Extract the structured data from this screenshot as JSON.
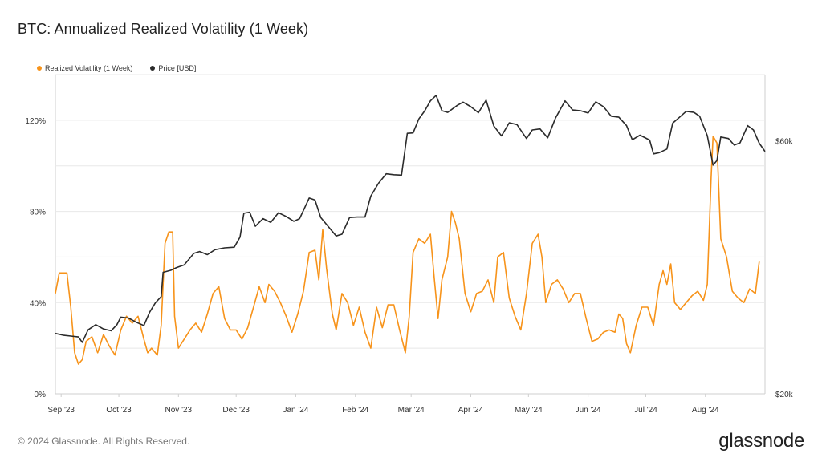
{
  "title": "BTC: Annualized Realized Volatility (1 Week)",
  "footer": "© 2024 Glassnode. All Rights Reserved.",
  "brand": "glassnode",
  "colors": {
    "volatility": "#f7931a",
    "price": "#2b2b2b",
    "grid": "#e8e8e8"
  },
  "chart_data": {
    "type": "line",
    "legend": [
      {
        "label": "Realized Volatility (1 Week)",
        "color": "#f7931a"
      },
      {
        "label": "Price [USD]",
        "color": "#2b2b2b"
      }
    ],
    "legend_position": "top-left",
    "x_ticks": [
      "Sep '23",
      "Oct '23",
      "Nov '23",
      "Dec '23",
      "Jan '24",
      "Feb '24",
      "Mar '24",
      "Apr '24",
      "May '24",
      "Jun '24",
      "Jul '24",
      "Aug '24"
    ],
    "x_range": [
      "2023-08-29",
      "2024-09-01"
    ],
    "y_left": {
      "ticks": [
        "0%",
        "40%",
        "80%",
        "120%"
      ],
      "tick_values": [
        0,
        40,
        80,
        120
      ],
      "range": [
        0,
        140
      ]
    },
    "y_right": {
      "ticks": [
        "$20k",
        "$60k"
      ],
      "tick_values": [
        20000,
        60000
      ],
      "scale": "log",
      "range": [
        20000,
        80000
      ]
    },
    "grid": true,
    "series": [
      {
        "name": "Realized Volatility (1 Week)",
        "axis": "left",
        "points": [
          [
            "2023-08-29",
            44
          ],
          [
            "2023-08-31",
            53
          ],
          [
            "2023-09-04",
            53
          ],
          [
            "2023-09-06",
            38
          ],
          [
            "2023-09-08",
            18
          ],
          [
            "2023-09-10",
            13
          ],
          [
            "2023-09-12",
            15
          ],
          [
            "2023-09-14",
            23
          ],
          [
            "2023-09-17",
            25
          ],
          [
            "2023-09-20",
            18
          ],
          [
            "2023-09-23",
            26
          ],
          [
            "2023-09-26",
            21
          ],
          [
            "2023-09-29",
            17
          ],
          [
            "2023-10-02",
            28
          ],
          [
            "2023-10-05",
            34
          ],
          [
            "2023-10-08",
            31
          ],
          [
            "2023-10-11",
            34
          ],
          [
            "2023-10-14",
            24
          ],
          [
            "2023-10-16",
            18
          ],
          [
            "2023-10-18",
            20
          ],
          [
            "2023-10-21",
            17
          ],
          [
            "2023-10-23",
            30
          ],
          [
            "2023-10-25",
            66
          ],
          [
            "2023-10-27",
            71
          ],
          [
            "2023-10-29",
            71
          ],
          [
            "2023-10-30",
            34
          ],
          [
            "2023-11-01",
            20
          ],
          [
            "2023-11-04",
            24
          ],
          [
            "2023-11-07",
            28
          ],
          [
            "2023-11-10",
            31
          ],
          [
            "2023-11-13",
            27
          ],
          [
            "2023-11-16",
            35
          ],
          [
            "2023-11-19",
            44
          ],
          [
            "2023-11-22",
            47
          ],
          [
            "2023-11-25",
            33
          ],
          [
            "2023-11-28",
            28
          ],
          [
            "2023-12-01",
            28
          ],
          [
            "2023-12-04",
            24
          ],
          [
            "2023-12-07",
            29
          ],
          [
            "2023-12-10",
            38
          ],
          [
            "2023-12-13",
            47
          ],
          [
            "2023-12-16",
            40
          ],
          [
            "2023-12-18",
            48
          ],
          [
            "2023-12-21",
            45
          ],
          [
            "2023-12-24",
            40
          ],
          [
            "2023-12-27",
            34
          ],
          [
            "2023-12-30",
            27
          ],
          [
            "2024-01-02",
            35
          ],
          [
            "2024-01-05",
            45
          ],
          [
            "2024-01-08",
            62
          ],
          [
            "2024-01-11",
            63
          ],
          [
            "2024-01-13",
            50
          ],
          [
            "2024-01-15",
            72
          ],
          [
            "2024-01-17",
            55
          ],
          [
            "2024-01-20",
            35
          ],
          [
            "2024-01-22",
            28
          ],
          [
            "2024-01-25",
            44
          ],
          [
            "2024-01-28",
            40
          ],
          [
            "2024-01-31",
            30
          ],
          [
            "2024-02-03",
            38
          ],
          [
            "2024-02-06",
            27
          ],
          [
            "2024-02-09",
            20
          ],
          [
            "2024-02-12",
            38
          ],
          [
            "2024-02-15",
            29
          ],
          [
            "2024-02-18",
            39
          ],
          [
            "2024-02-21",
            39
          ],
          [
            "2024-02-24",
            28
          ],
          [
            "2024-02-27",
            18
          ],
          [
            "2024-02-29",
            34
          ],
          [
            "2024-03-02",
            62
          ],
          [
            "2024-03-05",
            68
          ],
          [
            "2024-03-08",
            66
          ],
          [
            "2024-03-11",
            70
          ],
          [
            "2024-03-13",
            51
          ],
          [
            "2024-03-15",
            33
          ],
          [
            "2024-03-17",
            50
          ],
          [
            "2024-03-20",
            60
          ],
          [
            "2024-03-22",
            80
          ],
          [
            "2024-03-24",
            75
          ],
          [
            "2024-03-26",
            68
          ],
          [
            "2024-03-29",
            44
          ],
          [
            "2024-04-01",
            36
          ],
          [
            "2024-04-04",
            44
          ],
          [
            "2024-04-07",
            45
          ],
          [
            "2024-04-10",
            50
          ],
          [
            "2024-04-13",
            40
          ],
          [
            "2024-04-15",
            60
          ],
          [
            "2024-04-18",
            62
          ],
          [
            "2024-04-21",
            42
          ],
          [
            "2024-04-24",
            34
          ],
          [
            "2024-04-27",
            28
          ],
          [
            "2024-04-30",
            44
          ],
          [
            "2024-05-03",
            66
          ],
          [
            "2024-05-06",
            70
          ],
          [
            "2024-05-08",
            60
          ],
          [
            "2024-05-10",
            40
          ],
          [
            "2024-05-13",
            48
          ],
          [
            "2024-05-16",
            50
          ],
          [
            "2024-05-19",
            46
          ],
          [
            "2024-05-22",
            40
          ],
          [
            "2024-05-25",
            44
          ],
          [
            "2024-05-28",
            44
          ],
          [
            "2024-05-31",
            33
          ],
          [
            "2024-06-03",
            23
          ],
          [
            "2024-06-06",
            24
          ],
          [
            "2024-06-09",
            27
          ],
          [
            "2024-06-12",
            28
          ],
          [
            "2024-06-15",
            27
          ],
          [
            "2024-06-17",
            35
          ],
          [
            "2024-06-19",
            33
          ],
          [
            "2024-06-21",
            22
          ],
          [
            "2024-06-23",
            18
          ],
          [
            "2024-06-26",
            30
          ],
          [
            "2024-06-29",
            38
          ],
          [
            "2024-07-02",
            38
          ],
          [
            "2024-07-05",
            30
          ],
          [
            "2024-07-08",
            48
          ],
          [
            "2024-07-10",
            54
          ],
          [
            "2024-07-12",
            48
          ],
          [
            "2024-07-14",
            57
          ],
          [
            "2024-07-16",
            40
          ],
          [
            "2024-07-19",
            37
          ],
          [
            "2024-07-22",
            40
          ],
          [
            "2024-07-25",
            43
          ],
          [
            "2024-07-28",
            45
          ],
          [
            "2024-07-31",
            41
          ],
          [
            "2024-08-02",
            48
          ],
          [
            "2024-08-04",
            95
          ],
          [
            "2024-08-05",
            113
          ],
          [
            "2024-08-07",
            110
          ],
          [
            "2024-08-09",
            68
          ],
          [
            "2024-08-12",
            60
          ],
          [
            "2024-08-15",
            45
          ],
          [
            "2024-08-18",
            42
          ],
          [
            "2024-08-21",
            40
          ],
          [
            "2024-08-24",
            46
          ],
          [
            "2024-08-27",
            44
          ],
          [
            "2024-08-29",
            58
          ]
        ]
      },
      {
        "name": "Price [USD]",
        "axis": "right",
        "points": [
          [
            "2023-08-29",
            26000
          ],
          [
            "2023-09-02",
            25800
          ],
          [
            "2023-09-06",
            25700
          ],
          [
            "2023-09-10",
            25600
          ],
          [
            "2023-09-12",
            25000
          ],
          [
            "2023-09-15",
            26400
          ],
          [
            "2023-09-19",
            27000
          ],
          [
            "2023-09-23",
            26500
          ],
          [
            "2023-09-27",
            26300
          ],
          [
            "2023-09-30",
            27000
          ],
          [
            "2023-10-02",
            27900
          ],
          [
            "2023-10-06",
            27800
          ],
          [
            "2023-10-10",
            27300
          ],
          [
            "2023-10-14",
            26900
          ],
          [
            "2023-10-17",
            28500
          ],
          [
            "2023-10-20",
            29700
          ],
          [
            "2023-10-23",
            30500
          ],
          [
            "2023-10-24",
            33900
          ],
          [
            "2023-10-28",
            34200
          ],
          [
            "2023-10-31",
            34600
          ],
          [
            "2023-11-04",
            35000
          ],
          [
            "2023-11-09",
            36800
          ],
          [
            "2023-11-12",
            37100
          ],
          [
            "2023-11-16",
            36600
          ],
          [
            "2023-11-20",
            37400
          ],
          [
            "2023-11-25",
            37700
          ],
          [
            "2023-11-30",
            37800
          ],
          [
            "2023-12-03",
            39500
          ],
          [
            "2023-12-05",
            43800
          ],
          [
            "2023-12-08",
            44000
          ],
          [
            "2023-12-11",
            41400
          ],
          [
            "2023-12-15",
            42800
          ],
          [
            "2023-12-19",
            42100
          ],
          [
            "2023-12-23",
            43900
          ],
          [
            "2023-12-27",
            43200
          ],
          [
            "2023-12-31",
            42300
          ],
          [
            "2024-01-03",
            42800
          ],
          [
            "2024-01-08",
            46800
          ],
          [
            "2024-01-11",
            46400
          ],
          [
            "2024-01-14",
            43000
          ],
          [
            "2024-01-18",
            41300
          ],
          [
            "2024-01-22",
            39700
          ],
          [
            "2024-01-25",
            40000
          ],
          [
            "2024-01-29",
            43000
          ],
          [
            "2024-02-02",
            43100
          ],
          [
            "2024-02-06",
            43100
          ],
          [
            "2024-02-09",
            47200
          ],
          [
            "2024-02-13",
            49900
          ],
          [
            "2024-02-17",
            52000
          ],
          [
            "2024-02-21",
            51800
          ],
          [
            "2024-02-25",
            51700
          ],
          [
            "2024-02-28",
            62000
          ],
          [
            "2024-03-02",
            62100
          ],
          [
            "2024-03-05",
            66000
          ],
          [
            "2024-03-08",
            68300
          ],
          [
            "2024-03-11",
            71400
          ],
          [
            "2024-03-14",
            73100
          ],
          [
            "2024-03-17",
            68400
          ],
          [
            "2024-03-20",
            67900
          ],
          [
            "2024-03-25",
            70000
          ],
          [
            "2024-03-28",
            71000
          ],
          [
            "2024-04-01",
            69600
          ],
          [
            "2024-04-05",
            67800
          ],
          [
            "2024-04-09",
            71600
          ],
          [
            "2024-04-13",
            64000
          ],
          [
            "2024-04-17",
            61300
          ],
          [
            "2024-04-21",
            64900
          ],
          [
            "2024-04-25",
            64400
          ],
          [
            "2024-04-30",
            60600
          ],
          [
            "2024-05-03",
            62900
          ],
          [
            "2024-05-07",
            63200
          ],
          [
            "2024-05-11",
            60800
          ],
          [
            "2024-05-15",
            66200
          ],
          [
            "2024-05-20",
            71400
          ],
          [
            "2024-05-24",
            68600
          ],
          [
            "2024-05-28",
            68400
          ],
          [
            "2024-06-01",
            67700
          ],
          [
            "2024-06-05",
            71100
          ],
          [
            "2024-06-09",
            69600
          ],
          [
            "2024-06-13",
            66800
          ],
          [
            "2024-06-17",
            66500
          ],
          [
            "2024-06-21",
            64100
          ],
          [
            "2024-06-24",
            60300
          ],
          [
            "2024-06-28",
            61500
          ],
          [
            "2024-07-03",
            60200
          ],
          [
            "2024-07-05",
            56700
          ],
          [
            "2024-07-08",
            57000
          ],
          [
            "2024-07-12",
            57900
          ],
          [
            "2024-07-15",
            64800
          ],
          [
            "2024-07-19",
            66700
          ],
          [
            "2024-07-22",
            68200
          ],
          [
            "2024-07-26",
            67900
          ],
          [
            "2024-07-29",
            66800
          ],
          [
            "2024-08-02",
            61400
          ],
          [
            "2024-08-05",
            54000
          ],
          [
            "2024-08-07",
            55100
          ],
          [
            "2024-08-09",
            61000
          ],
          [
            "2024-08-13",
            60600
          ],
          [
            "2024-08-16",
            58900
          ],
          [
            "2024-08-19",
            59500
          ],
          [
            "2024-08-23",
            64100
          ],
          [
            "2024-08-26",
            62900
          ],
          [
            "2024-08-29",
            59400
          ],
          [
            "2024-09-01",
            57300
          ]
        ]
      }
    ]
  }
}
